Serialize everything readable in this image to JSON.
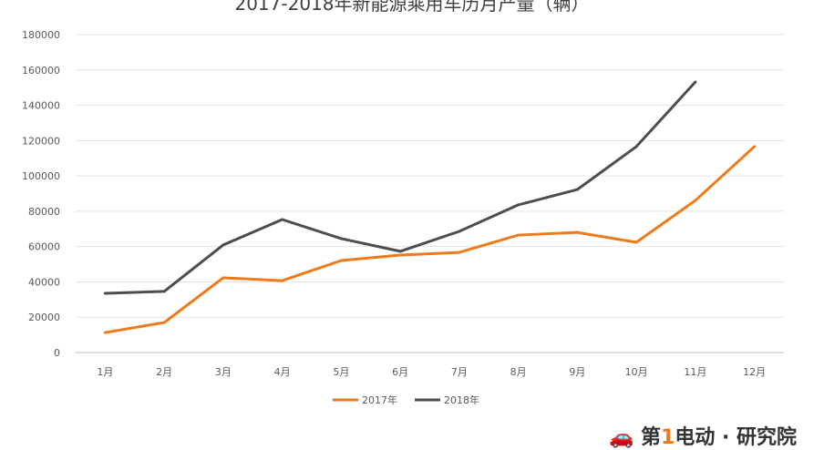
{
  "chart_data": {
    "type": "line",
    "title": "2017-2018年新能源乘用车历月产量（辆）",
    "xlabel": "",
    "ylabel": "",
    "categories": [
      "1月",
      "2月",
      "3月",
      "4月",
      "5月",
      "6月",
      "7月",
      "8月",
      "9月",
      "10月",
      "11月",
      "12月"
    ],
    "ylim": [
      0,
      180000
    ],
    "yticks": [
      0,
      20000,
      40000,
      60000,
      80000,
      100000,
      120000,
      140000,
      160000,
      180000
    ],
    "grid": true,
    "legend_position": "bottom",
    "series": [
      {
        "name": "2017年",
        "color": "#f07a1a",
        "values": [
          11300,
          17000,
          42300,
          40700,
          52100,
          55200,
          56700,
          66500,
          68000,
          62400,
          86100,
          116600
        ]
      },
      {
        "name": "2018年",
        "color": "#4d4d4d",
        "values": [
          33500,
          34600,
          60900,
          75300,
          64500,
          57300,
          68600,
          83600,
          92300,
          116600,
          153200,
          null
        ]
      }
    ]
  },
  "watermark": {
    "logo_text": "第1电动·研究院"
  }
}
